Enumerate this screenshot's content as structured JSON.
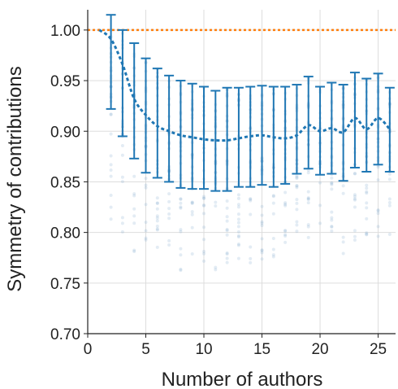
{
  "chart_data": {
    "type": "line",
    "xlabel": "Number of authors",
    "ylabel": "Symmetry of contributions",
    "xlim": [
      0,
      26.5
    ],
    "ylim": [
      0.7,
      1.02
    ],
    "xticks": [
      0,
      5,
      10,
      15,
      20,
      25
    ],
    "xtick_labels": [
      "0",
      "5",
      "10",
      "15",
      "20",
      "25"
    ],
    "yticks": [
      0.7,
      0.75,
      0.8,
      0.85,
      0.9,
      0.95,
      1.0
    ],
    "ytick_labels": [
      "0.70",
      "0.75",
      "0.80",
      "0.85",
      "0.90",
      "0.95",
      "1.00"
    ],
    "grid": true,
    "colors": {
      "mean": "#1f77b4",
      "reference": "#ff7f0e",
      "scatter": "#7fa8cf",
      "grid": "#dddddd"
    },
    "reference_line": {
      "y": 1.0,
      "style": "dotted"
    },
    "series": [
      {
        "x": [
          1,
          2,
          3,
          4,
          5,
          6,
          7,
          8,
          9,
          10,
          11,
          12,
          13,
          14,
          15,
          16,
          17,
          18,
          19,
          20,
          21,
          22,
          23,
          24,
          25,
          26
        ],
        "mean": [
          1.0,
          0.991,
          0.966,
          0.932,
          0.916,
          0.905,
          0.9,
          0.896,
          0.894,
          0.892,
          0.891,
          0.891,
          0.893,
          0.895,
          0.896,
          0.894,
          0.893,
          0.896,
          0.906,
          0.9,
          0.903,
          0.899,
          0.913,
          0.902,
          0.913,
          0.902
        ],
        "lower": [
          1.0,
          0.922,
          0.895,
          0.873,
          0.859,
          0.854,
          0.85,
          0.844,
          0.843,
          0.843,
          0.841,
          0.841,
          0.845,
          0.845,
          0.847,
          0.845,
          0.848,
          0.858,
          0.863,
          0.857,
          0.858,
          0.851,
          0.864,
          0.86,
          0.867,
          0.86
        ],
        "upper": [
          1.0,
          1.015,
          1.0,
          0.987,
          0.972,
          0.962,
          0.955,
          0.95,
          0.947,
          0.944,
          0.94,
          0.943,
          0.943,
          0.944,
          0.945,
          0.944,
          0.944,
          0.946,
          0.954,
          0.944,
          0.948,
          0.946,
          0.958,
          0.952,
          0.957,
          0.943
        ]
      }
    ]
  }
}
